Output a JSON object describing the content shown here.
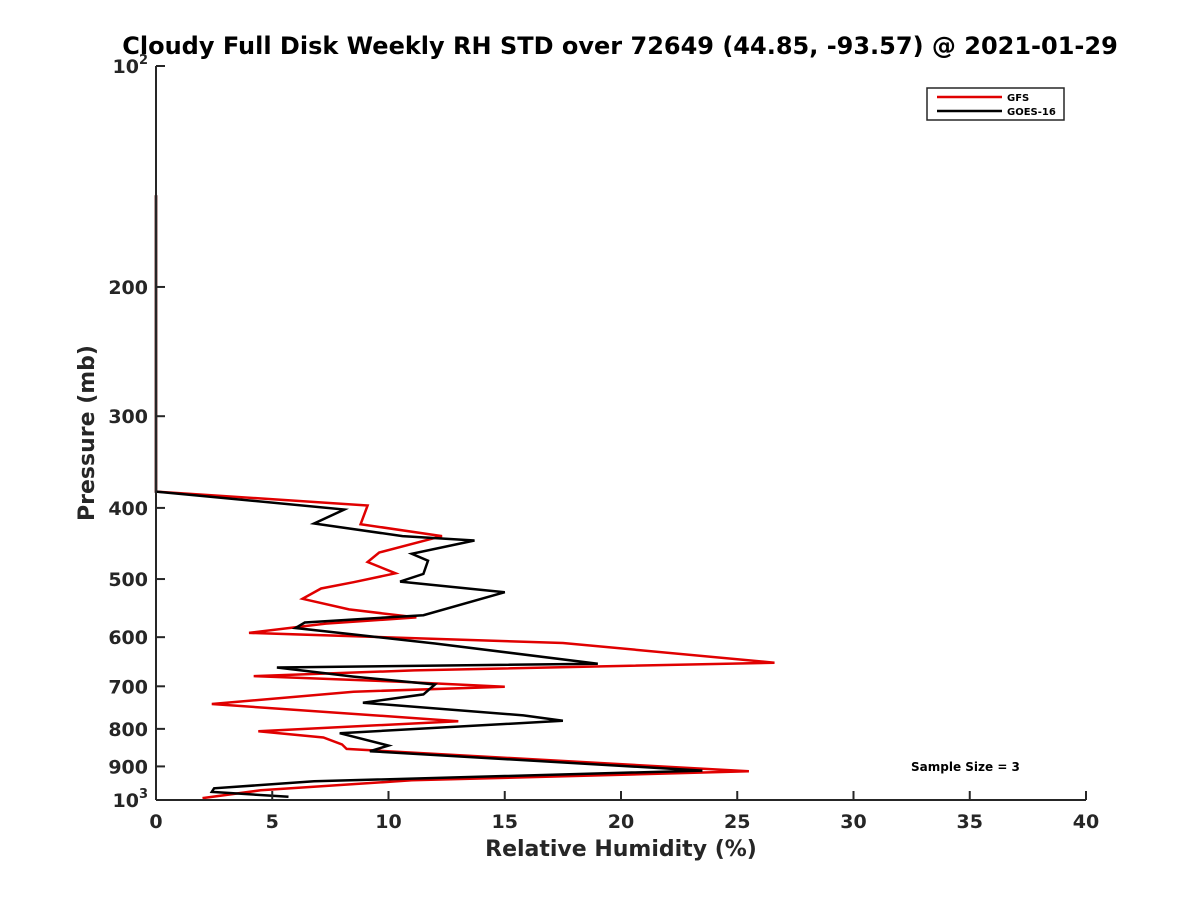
{
  "chart_data": {
    "type": "line",
    "title": "Cloudy Full Disk Weekly RH STD over 72649 (44.85, -93.57) @ 2021-01-29",
    "xlabel": "Relative Humidity (%)",
    "ylabel": "Pressure (mb)",
    "xlim": [
      0,
      40
    ],
    "ylim": [
      1000,
      100
    ],
    "yscale": "log",
    "x_ticks": [
      0,
      5,
      10,
      15,
      20,
      25,
      30,
      35,
      40
    ],
    "x_tick_labels": [
      "0",
      "5",
      "10",
      "15",
      "20",
      "25",
      "30",
      "35",
      "40"
    ],
    "y_ticks": [
      {
        "value": 100,
        "label": "10",
        "sup": "2"
      },
      {
        "value": 200,
        "label": "200",
        "sup": ""
      },
      {
        "value": 300,
        "label": "300",
        "sup": ""
      },
      {
        "value": 400,
        "label": "400",
        "sup": ""
      },
      {
        "value": 500,
        "label": "500",
        "sup": ""
      },
      {
        "value": 600,
        "label": "600",
        "sup": ""
      },
      {
        "value": 700,
        "label": "700",
        "sup": ""
      },
      {
        "value": 800,
        "label": "800",
        "sup": ""
      },
      {
        "value": 900,
        "label": "900",
        "sup": ""
      },
      {
        "value": 1000,
        "label": "10",
        "sup": "3"
      }
    ],
    "grid": false,
    "legend_position": "top-right",
    "annotation": "Sample Size = 3",
    "series": [
      {
        "name": "GFS",
        "color": "#e00000",
        "points": [
          [
            0,
            150
          ],
          [
            0,
            200
          ],
          [
            0,
            300
          ],
          [
            0,
            380
          ],
          [
            9.1,
            397
          ],
          [
            8.8,
            421
          ],
          [
            12.3,
            437
          ],
          [
            9.6,
            460
          ],
          [
            9.1,
            474
          ],
          [
            10.3,
            491
          ],
          [
            8.5,
            505
          ],
          [
            7.1,
            515
          ],
          [
            6.3,
            532
          ],
          [
            8.3,
            550
          ],
          [
            11.2,
            564
          ],
          [
            7.3,
            575
          ],
          [
            4.0,
            592
          ],
          [
            17.5,
            611
          ],
          [
            26.6,
            650
          ],
          [
            11.1,
            666
          ],
          [
            4.2,
            678
          ],
          [
            10.5,
            690
          ],
          [
            15.0,
            701
          ],
          [
            8.5,
            712
          ],
          [
            2.4,
            740
          ],
          [
            13.0,
            781
          ],
          [
            4.4,
            806
          ],
          [
            7.2,
            822
          ],
          [
            8.0,
            840
          ],
          [
            8.2,
            852
          ],
          [
            25.5,
            914
          ],
          [
            11.0,
            940
          ],
          [
            4.5,
            970
          ],
          [
            2.0,
            994
          ]
        ]
      },
      {
        "name": "GOES-16",
        "color": "#000000",
        "points": [
          [
            0,
            150
          ],
          [
            0,
            200
          ],
          [
            0,
            300
          ],
          [
            0,
            380
          ],
          [
            8.1,
            402
          ],
          [
            6.8,
            420
          ],
          [
            10.6,
            437
          ],
          [
            13.7,
            443
          ],
          [
            11.0,
            462
          ],
          [
            11.7,
            472
          ],
          [
            11.5,
            492
          ],
          [
            10.5,
            504
          ],
          [
            15.0,
            521
          ],
          [
            11.5,
            560
          ],
          [
            6.4,
            573
          ],
          [
            6.0,
            583
          ],
          [
            12.0,
            612
          ],
          [
            19.0,
            652
          ],
          [
            5.2,
            660
          ],
          [
            8.5,
            679
          ],
          [
            12.0,
            696
          ],
          [
            11.5,
            718
          ],
          [
            8.9,
            737
          ],
          [
            15.8,
            767
          ],
          [
            17.5,
            780
          ],
          [
            7.9,
            811
          ],
          [
            10.0,
            843
          ],
          [
            9.2,
            858
          ],
          [
            23.5,
            912
          ],
          [
            6.8,
            943
          ],
          [
            2.5,
            964
          ],
          [
            2.4,
            975
          ],
          [
            5.7,
            990
          ]
        ]
      }
    ]
  }
}
